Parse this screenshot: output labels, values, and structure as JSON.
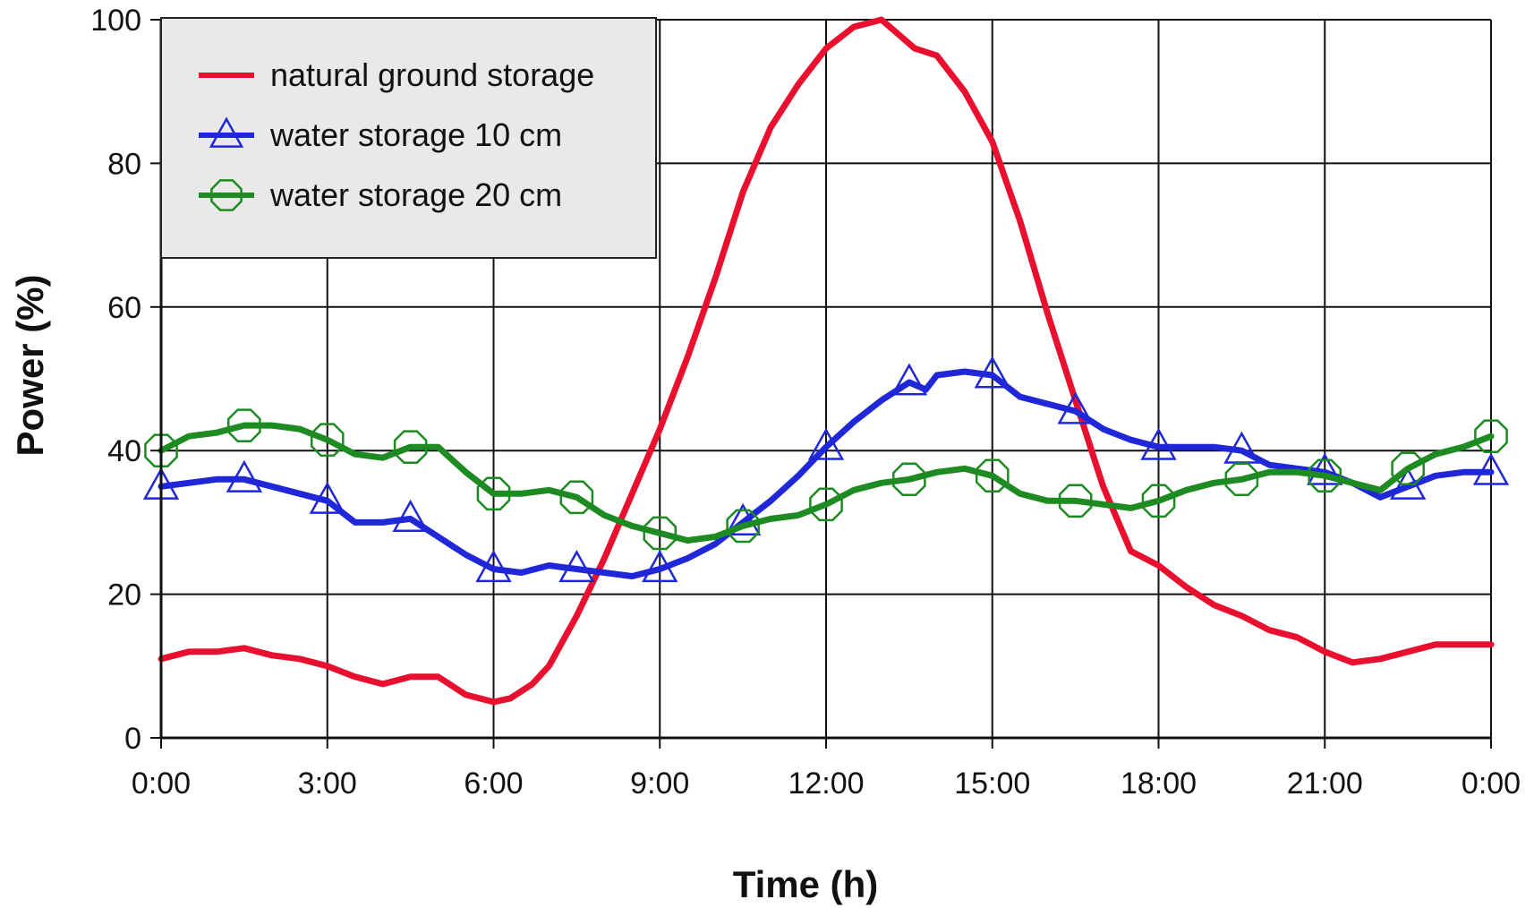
{
  "chart_data": {
    "type": "line",
    "title": "",
    "xlabel": "Time (h)",
    "ylabel": "Power (%)",
    "xlim": [
      0,
      24
    ],
    "ylim": [
      0,
      100
    ],
    "x_ticks": [
      {
        "value": 0,
        "label": "0:00"
      },
      {
        "value": 3,
        "label": "3:00"
      },
      {
        "value": 6,
        "label": "6:00"
      },
      {
        "value": 9,
        "label": "9:00"
      },
      {
        "value": 12,
        "label": "12:00"
      },
      {
        "value": 15,
        "label": "15:00"
      },
      {
        "value": 18,
        "label": "18:00"
      },
      {
        "value": 21,
        "label": "21:00"
      },
      {
        "value": 24,
        "label": "0:00"
      }
    ],
    "y_ticks": [
      {
        "value": 0,
        "label": "0"
      },
      {
        "value": 20,
        "label": "20"
      },
      {
        "value": 40,
        "label": "40"
      },
      {
        "value": 60,
        "label": "60"
      },
      {
        "value": 80,
        "label": "80"
      },
      {
        "value": 100,
        "label": "100"
      }
    ],
    "grid": true,
    "legend_position": "top-left",
    "series": [
      {
        "name": "natural ground storage",
        "color": "#e8102e",
        "marker": "none",
        "x": [
          0,
          0.5,
          1,
          1.5,
          2,
          2.5,
          3,
          3.5,
          4,
          4.5,
          5,
          5.5,
          6,
          6.3,
          6.7,
          7,
          7.5,
          8,
          8.5,
          9,
          9.5,
          10,
          10.5,
          11,
          11.5,
          12,
          12.5,
          13,
          13.3,
          13.6,
          14,
          14.5,
          15,
          15.5,
          16,
          16.5,
          17,
          17.5,
          18,
          18.5,
          19,
          19.5,
          20,
          20.5,
          21,
          21.5,
          22,
          22.5,
          23,
          23.5,
          24
        ],
        "y": [
          11,
          12,
          12,
          12.5,
          11.5,
          11,
          10,
          8.5,
          7.5,
          8.5,
          8.5,
          6,
          5,
          5.5,
          7.5,
          10,
          17,
          25,
          34,
          43,
          53,
          64,
          76,
          85,
          91,
          96,
          99,
          100,
          98,
          96,
          95,
          90,
          83,
          72,
          59,
          47,
          35,
          26,
          24,
          21,
          18.5,
          17,
          15,
          14,
          12,
          10.5,
          11,
          12,
          13,
          13,
          13
        ]
      },
      {
        "name": "water storage 10 cm",
        "color": "#1f27d8",
        "marker": "triangle",
        "marker_x": [
          0,
          1.5,
          3,
          4.5,
          6,
          7.5,
          9,
          10.5,
          12,
          13.5,
          15,
          16.5,
          18,
          19.5,
          21,
          22.5,
          24
        ],
        "x": [
          0,
          0.5,
          1,
          1.5,
          2,
          2.5,
          3,
          3.5,
          4,
          4.5,
          5,
          5.5,
          6,
          6.5,
          7,
          7.5,
          8,
          8.5,
          9,
          9.5,
          10,
          10.5,
          11,
          11.5,
          12,
          12.5,
          13,
          13.5,
          13.8,
          14,
          14.5,
          15,
          15.5,
          16,
          16.5,
          17,
          17.5,
          18,
          18.5,
          19,
          19.5,
          20,
          20.5,
          21,
          21.5,
          22,
          22.5,
          23,
          23.5,
          24
        ],
        "y": [
          35,
          35.5,
          36,
          36,
          35,
          34,
          33,
          30,
          30,
          30.5,
          28,
          25.5,
          23.5,
          23,
          24,
          23.5,
          23,
          22.5,
          23.5,
          25,
          27,
          30,
          33,
          36.5,
          40.5,
          44,
          47,
          49.5,
          48.5,
          50.5,
          51,
          50.5,
          47.5,
          46.5,
          45.5,
          43,
          41.5,
          40.5,
          40.5,
          40.5,
          40,
          38,
          37.5,
          37,
          35.5,
          33.5,
          35,
          36.5,
          37,
          37
        ]
      },
      {
        "name": "water storage 20 cm",
        "color": "#1e8a22",
        "marker": "octagon",
        "marker_x": [
          0,
          1.5,
          3,
          4.5,
          6,
          7.5,
          9,
          10.5,
          12,
          13.5,
          15,
          16.5,
          18,
          19.5,
          21,
          22.5,
          24
        ],
        "x": [
          0,
          0.5,
          1,
          1.5,
          2,
          2.5,
          3,
          3.5,
          4,
          4.5,
          5,
          5.5,
          6,
          6.5,
          7,
          7.5,
          8,
          8.5,
          9,
          9.5,
          10,
          10.5,
          11,
          11.5,
          12,
          12.5,
          13,
          13.5,
          14,
          14.5,
          15,
          15.5,
          16,
          16.5,
          17,
          17.5,
          18,
          18.5,
          19,
          19.5,
          20,
          20.5,
          21,
          21.5,
          22,
          22.5,
          23,
          23.5,
          24
        ],
        "y": [
          40,
          42,
          42.5,
          43.5,
          43.5,
          43,
          41.5,
          39.5,
          39,
          40.5,
          40.5,
          37,
          34,
          34,
          34.5,
          33.5,
          31,
          29.5,
          28.5,
          27.5,
          28,
          29.5,
          30.5,
          31,
          32.5,
          34.5,
          35.5,
          36,
          37,
          37.5,
          36.5,
          34,
          33,
          33,
          32.5,
          32,
          33,
          34.5,
          35.5,
          36,
          37,
          37,
          36.5,
          35.5,
          34.5,
          37.5,
          39.5,
          40.5,
          42
        ]
      }
    ]
  }
}
